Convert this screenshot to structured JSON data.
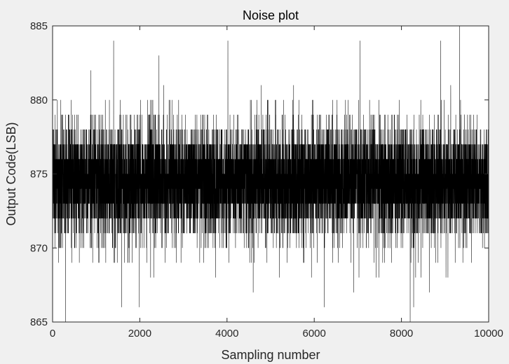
{
  "chart_data": {
    "type": "line",
    "title": "Noise plot",
    "xlabel": "Sampling number",
    "ylabel": "Output Code(LSB)",
    "xlim": [
      0,
      10000
    ],
    "ylim": [
      865,
      885
    ],
    "xticks": [
      0,
      2000,
      4000,
      6000,
      8000,
      10000
    ],
    "yticks": [
      865,
      870,
      875,
      880,
      885
    ],
    "grid": false,
    "legend": false,
    "series": [
      {
        "n_samples": 10000,
        "mean": 874.5,
        "std": 1.9,
        "dominant_band": [
          871,
          878
        ],
        "min": 865,
        "max": 885,
        "extremes": [
          {
            "x": 300,
            "y": 865
          },
          {
            "x": 1400,
            "y": 884
          },
          {
            "x": 1580,
            "y": 866
          },
          {
            "x": 1990,
            "y": 866
          },
          {
            "x": 2440,
            "y": 883
          },
          {
            "x": 4020,
            "y": 884
          },
          {
            "x": 4600,
            "y": 867
          },
          {
            "x": 6230,
            "y": 866
          },
          {
            "x": 7050,
            "y": 884
          },
          {
            "x": 8200,
            "y": 865
          },
          {
            "x": 8280,
            "y": 866
          },
          {
            "x": 8900,
            "y": 884
          },
          {
            "x": 9330,
            "y": 885
          }
        ]
      }
    ]
  },
  "colors": {
    "figure_background": "#f0f0f0",
    "axes_background": "#ffffff",
    "line": "#000000",
    "axis": "#262626"
  }
}
